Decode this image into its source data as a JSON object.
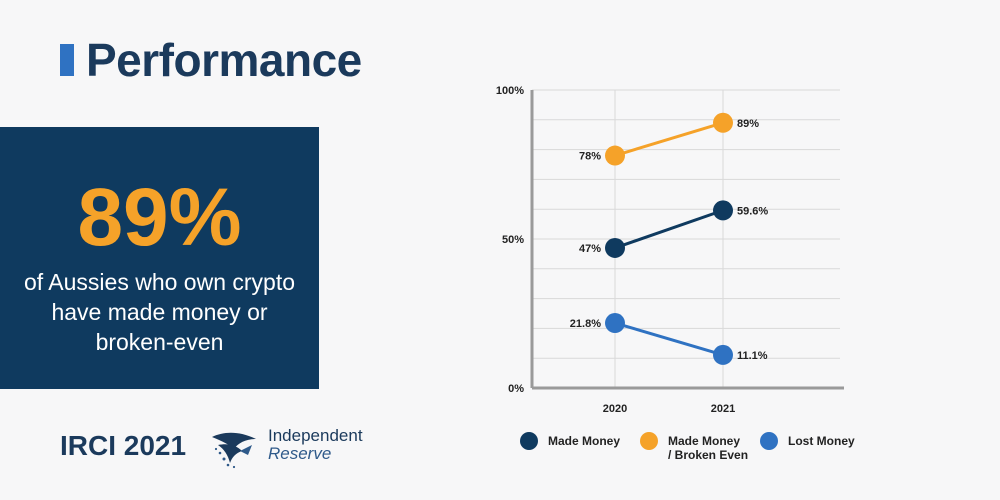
{
  "header": {
    "title": "Performance"
  },
  "stat": {
    "value": "89%",
    "caption": "of Aussies who own crypto have made money or broken-even"
  },
  "footer": {
    "tag": "IRCI 2021"
  },
  "logo": {
    "line1": "Independent",
    "line2": "Reserve"
  },
  "colors": {
    "navy": "#0f3a5f",
    "orange": "#f5a229",
    "blue": "#2f72c2",
    "title": "#1b3a5c"
  },
  "chart_data": {
    "type": "line",
    "categories": [
      "2020",
      "2021"
    ],
    "ylim": [
      0,
      100
    ],
    "yticks": [
      "0%",
      "50%",
      "100%"
    ],
    "grid": true,
    "legend_position": "bottom",
    "series": [
      {
        "name": "Made Money",
        "values": [
          47,
          59.6
        ],
        "labels": [
          "47%",
          "59.6%"
        ],
        "color": "#0f3a5f"
      },
      {
        "name": "Made Money\n/ Broken Even",
        "values": [
          78,
          89
        ],
        "labels": [
          "78%",
          "89%"
        ],
        "color": "#f5a229"
      },
      {
        "name": "Lost Money",
        "values": [
          21.8,
          11.1
        ],
        "labels": [
          "21.8%",
          "11.1%"
        ],
        "color": "#2f72c2"
      }
    ]
  }
}
